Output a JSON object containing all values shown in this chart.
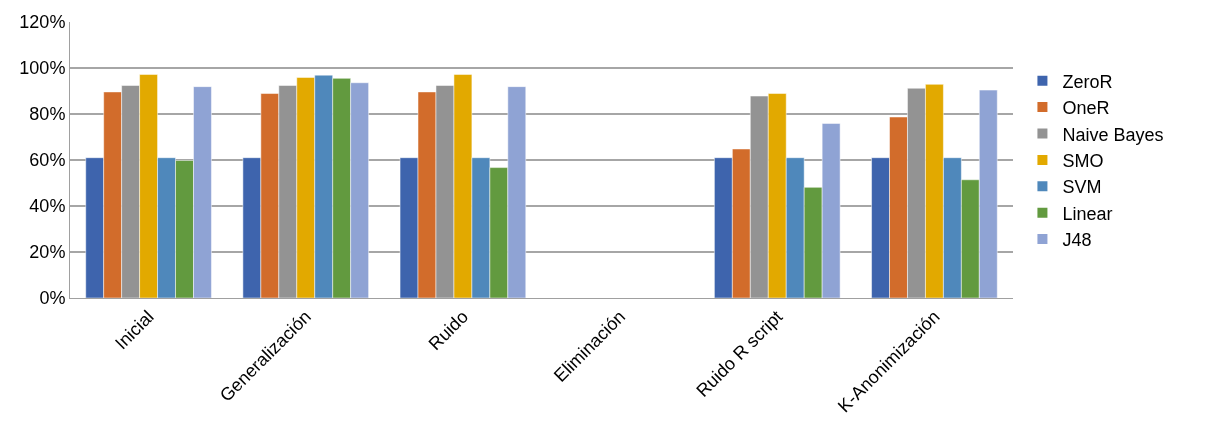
{
  "chart_data": {
    "type": "bar",
    "categories": [
      "Inicial",
      "Generalización",
      "Ruido",
      "Eliminación",
      "Ruido R script",
      "K-Anonimización"
    ],
    "series": [
      {
        "name": "ZeroR",
        "color": "#3e64ad",
        "values": [
          61.0,
          61.0,
          61.0,
          null,
          61.0,
          61.0
        ]
      },
      {
        "name": "OneR",
        "color": "#d26c2b",
        "values": [
          89.6,
          88.9,
          89.6,
          null,
          64.8,
          78.7
        ]
      },
      {
        "name": "Naive Bayes",
        "color": "#939393",
        "values": [
          92.4,
          92.4,
          92.4,
          null,
          87.8,
          91.2
        ]
      },
      {
        "name": "SMO",
        "color": "#e2a900",
        "values": [
          97.2,
          95.9,
          97.2,
          null,
          88.9,
          92.9
        ]
      },
      {
        "name": "SVM",
        "color": "#4f88bb",
        "values": [
          61.0,
          96.9,
          61.0,
          null,
          61.0,
          61.0
        ]
      },
      {
        "name": "Linear",
        "color": "#629a3f",
        "values": [
          59.8,
          95.5,
          56.7,
          null,
          48.1,
          51.4
        ]
      },
      {
        "name": "J48",
        "color": "#8fa3d4",
        "values": [
          91.9,
          93.6,
          91.9,
          null,
          75.9,
          90.4
        ]
      }
    ],
    "ylim": [
      0,
      120
    ],
    "yticks": [
      {
        "value": 0,
        "label": "0%"
      },
      {
        "value": 20,
        "label": "20%"
      },
      {
        "value": 40,
        "label": "40%"
      },
      {
        "value": 60,
        "label": "60%"
      },
      {
        "value": 80,
        "label": "80%"
      },
      {
        "value": 100,
        "label": "100%"
      },
      {
        "value": 120,
        "label": "120%"
      }
    ],
    "grid": "y",
    "legend": "right"
  }
}
